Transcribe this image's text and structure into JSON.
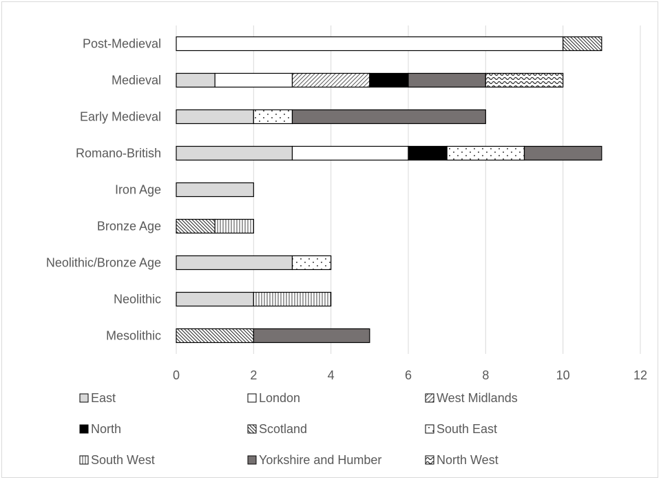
{
  "chart_data": {
    "type": "bar",
    "orientation": "horizontal",
    "stacked": true,
    "title": "",
    "xlabel": "",
    "ylabel": "",
    "xlim": [
      0,
      12
    ],
    "x_ticks": [
      0,
      2,
      4,
      6,
      8,
      10,
      12
    ],
    "grid": "vertical major gridlines",
    "legend_position": "bottom",
    "categories": [
      "Post-Medieval",
      "Medieval",
      "Early Medieval",
      "Romano-British",
      "Iron Age",
      "Bronze Age",
      "Neolithic/Bronze Age",
      "Neolithic",
      "Mesolithic"
    ],
    "series": [
      {
        "name": "East",
        "pattern": "solid-light-grey",
        "values": [
          0,
          1,
          2,
          3,
          2,
          0,
          3,
          2,
          0
        ]
      },
      {
        "name": "London",
        "pattern": "solid-white",
        "values": [
          10,
          2,
          0,
          3,
          0,
          0,
          0,
          0,
          0
        ]
      },
      {
        "name": "West Midlands",
        "pattern": "diagonal-stripes-up",
        "values": [
          0,
          2,
          0,
          0,
          0,
          0,
          0,
          0,
          0
        ]
      },
      {
        "name": "North",
        "pattern": "solid-black",
        "values": [
          0,
          1,
          0,
          1,
          0,
          0,
          0,
          0,
          0
        ]
      },
      {
        "name": "Scotland",
        "pattern": "diagonal-stripes-down",
        "values": [
          1,
          0,
          0,
          0,
          0,
          1,
          0,
          0,
          2
        ]
      },
      {
        "name": "South East",
        "pattern": "dots",
        "values": [
          0,
          0,
          1,
          2,
          0,
          0,
          1,
          0,
          0
        ]
      },
      {
        "name": "South West",
        "pattern": "vertical-stripes",
        "values": [
          0,
          0,
          0,
          0,
          0,
          1,
          0,
          2,
          0
        ]
      },
      {
        "name": "Yorkshire and Humber",
        "pattern": "solid-dark-grey",
        "values": [
          0,
          2,
          5,
          2,
          0,
          0,
          0,
          0,
          3
        ]
      },
      {
        "name": "North West",
        "pattern": "waves",
        "values": [
          0,
          2,
          0,
          0,
          0,
          0,
          0,
          0,
          0
        ]
      }
    ],
    "colors": {
      "light_grey": "#d9d9d9",
      "dark_grey": "#767171",
      "black": "#000000",
      "white": "#ffffff",
      "gridline": "#d9d9d9",
      "text": "#595959"
    }
  }
}
